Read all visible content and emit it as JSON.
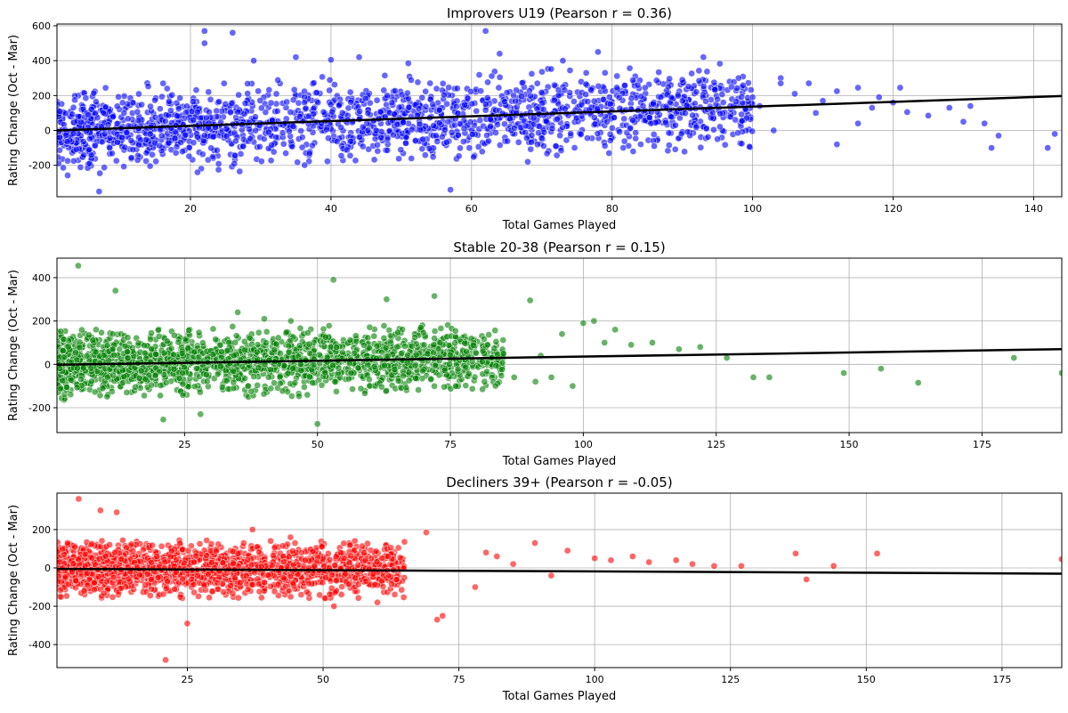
{
  "chart_data": [
    {
      "type": "scatter",
      "title": "Improvers U19 (Pearson r = 0.36)",
      "xlabel": "Total Games Played",
      "ylabel": "Rating Change (Oct - Mar)",
      "xlim": [
        1,
        144
      ],
      "ylim": [
        -380,
        610
      ],
      "xticks": [
        20,
        40,
        60,
        80,
        100,
        120,
        140
      ],
      "yticks": [
        -200,
        0,
        200,
        400,
        600
      ],
      "grid": true,
      "point_color": "#0000ff",
      "line_color": "#000000",
      "trend": {
        "x": [
          1,
          144
        ],
        "y": [
          0,
          197
        ]
      },
      "bulk": {
        "x_max": 100,
        "center_at_start": 0,
        "center_at_end": 135,
        "spread": 260
      },
      "series": [
        {
          "x": [
            7,
            22,
            22,
            26,
            29,
            57,
            62,
            35,
            40,
            44,
            51,
            21,
            27,
            24,
            68,
            78,
            64,
            73,
            93,
            104,
            98,
            108,
            112,
            115,
            118,
            121,
            104,
            110,
            122,
            125,
            128,
            131,
            133,
            134,
            142,
            100,
            101,
            106,
            115,
            117,
            97,
            95,
            83,
            79,
            88,
            90,
            92,
            99,
            103,
            109,
            112,
            120,
            130,
            135,
            143,
            86,
            72,
            66,
            48
          ],
          "y": [
            -350,
            570,
            500,
            560,
            400,
            -340,
            570,
            420,
            405,
            420,
            385,
            -240,
            -235,
            -225,
            -180,
            450,
            440,
            400,
            420,
            300,
            300,
            270,
            225,
            245,
            190,
            245,
            270,
            170,
            105,
            85,
            130,
            140,
            40,
            -100,
            -100,
            190,
            140,
            210,
            40,
            130,
            250,
            -50,
            -120,
            330,
            250,
            290,
            220,
            120,
            0,
            100,
            -80,
            160,
            50,
            -30,
            -20,
            -90,
            -90,
            200,
            200
          ]
        }
      ]
    },
    {
      "type": "scatter",
      "title": "Stable 20-38 (Pearson r = 0.15)",
      "xlabel": "Total Games Played",
      "ylabel": "Rating Change (Oct - Mar)",
      "xlim": [
        1,
        190
      ],
      "ylim": [
        -315,
        490
      ],
      "xticks": [
        25,
        50,
        75,
        100,
        125,
        150,
        175
      ],
      "yticks": [
        -200,
        0,
        200,
        400
      ],
      "grid": true,
      "point_color": "#008000",
      "line_color": "#000000",
      "trend": {
        "x": [
          1,
          190
        ],
        "y": [
          -2,
          70
        ]
      },
      "bulk": {
        "x_max": 85,
        "center_at_start": 0,
        "center_at_end": 25,
        "spread": 165
      },
      "series": [
        {
          "x": [
            5,
            12,
            53,
            72,
            63,
            90,
            106,
            100,
            102,
            104,
            109,
            113,
            118,
            122,
            127,
            132,
            135,
            149,
            156,
            163,
            181,
            190,
            98,
            96,
            94,
            92,
            91,
            87,
            82,
            78,
            76,
            72,
            50,
            28,
            21,
            35,
            40,
            45
          ],
          "y": [
            455,
            340,
            390,
            315,
            300,
            295,
            160,
            190,
            200,
            100,
            90,
            100,
            70,
            80,
            30,
            -60,
            -60,
            -40,
            -20,
            -85,
            30,
            -40,
            -100,
            140,
            -60,
            40,
            -80,
            -60,
            90,
            60,
            -100,
            120,
            -275,
            -230,
            -255,
            240,
            210,
            200
          ]
        }
      ]
    },
    {
      "type": "scatter",
      "title": "Decliners 39+ (Pearson r = -0.05)",
      "xlabel": "Total Games Played",
      "ylabel": "Rating Change (Oct - Mar)",
      "xlim": [
        1,
        186
      ],
      "ylim": [
        -520,
        390
      ],
      "xticks": [
        25,
        50,
        75,
        100,
        125,
        150,
        175
      ],
      "yticks": [
        -400,
        -200,
        0,
        200
      ],
      "grid": true,
      "point_color": "#ff0000",
      "line_color": "#000000",
      "trend": {
        "x": [
          1,
          186
        ],
        "y": [
          -5,
          -30
        ]
      },
      "bulk": {
        "x_max": 65,
        "center_at_start": -5,
        "center_at_end": -10,
        "spread": 155
      },
      "series": [
        {
          "x": [
            5,
            9,
            12,
            21,
            25,
            37,
            44,
            52,
            69,
            72,
            71,
            80,
            89,
            95,
            100,
            103,
            107,
            110,
            115,
            118,
            122,
            127,
            137,
            139,
            144,
            152,
            186,
            85,
            92,
            78,
            82,
            60
          ],
          "y": [
            360,
            300,
            290,
            -480,
            -290,
            200,
            160,
            -200,
            185,
            -250,
            -270,
            80,
            130,
            90,
            50,
            40,
            60,
            30,
            40,
            20,
            10,
            10,
            75,
            -60,
            10,
            75,
            45,
            20,
            -40,
            -100,
            60,
            -180
          ]
        }
      ]
    }
  ]
}
